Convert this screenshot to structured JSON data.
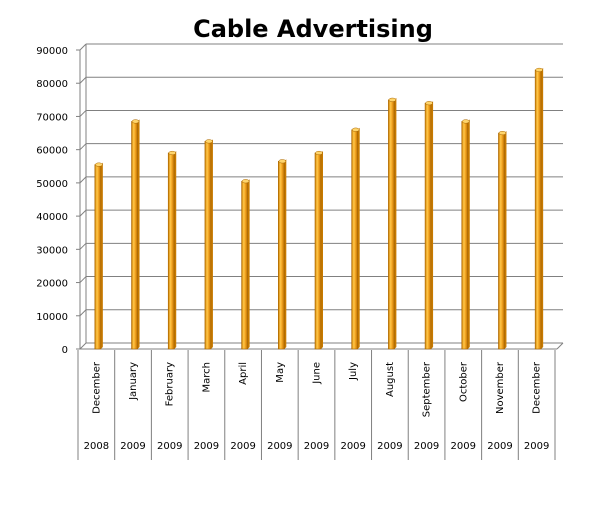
{
  "chart_data": {
    "type": "bar",
    "title": "Cable Advertising",
    "xlabel": "",
    "ylabel": "",
    "ylim": [
      0,
      90000
    ],
    "yticks": [
      0,
      10000,
      20000,
      30000,
      40000,
      50000,
      60000,
      70000,
      80000,
      90000
    ],
    "grid": true,
    "legend": "none",
    "bar_color": "#F5A623",
    "bar_dark": "#C77A00",
    "categories": [
      {
        "month": "December",
        "year": "2008"
      },
      {
        "month": "January",
        "year": "2009"
      },
      {
        "month": "February",
        "year": "2009"
      },
      {
        "month": "March",
        "year": "2009"
      },
      {
        "month": "April",
        "year": "2009"
      },
      {
        "month": "May",
        "year": "2009"
      },
      {
        "month": "June",
        "year": "2009"
      },
      {
        "month": "July",
        "year": "2009"
      },
      {
        "month": "August",
        "year": "2009"
      },
      {
        "month": "September",
        "year": "2009"
      },
      {
        "month": "October",
        "year": "2009"
      },
      {
        "month": "November",
        "year": "2009"
      },
      {
        "month": "December",
        "year": "2009"
      }
    ],
    "values": [
      55500,
      68500,
      59000,
      62500,
      50500,
      56500,
      59000,
      66000,
      75000,
      74000,
      68500,
      65000,
      84000
    ]
  }
}
